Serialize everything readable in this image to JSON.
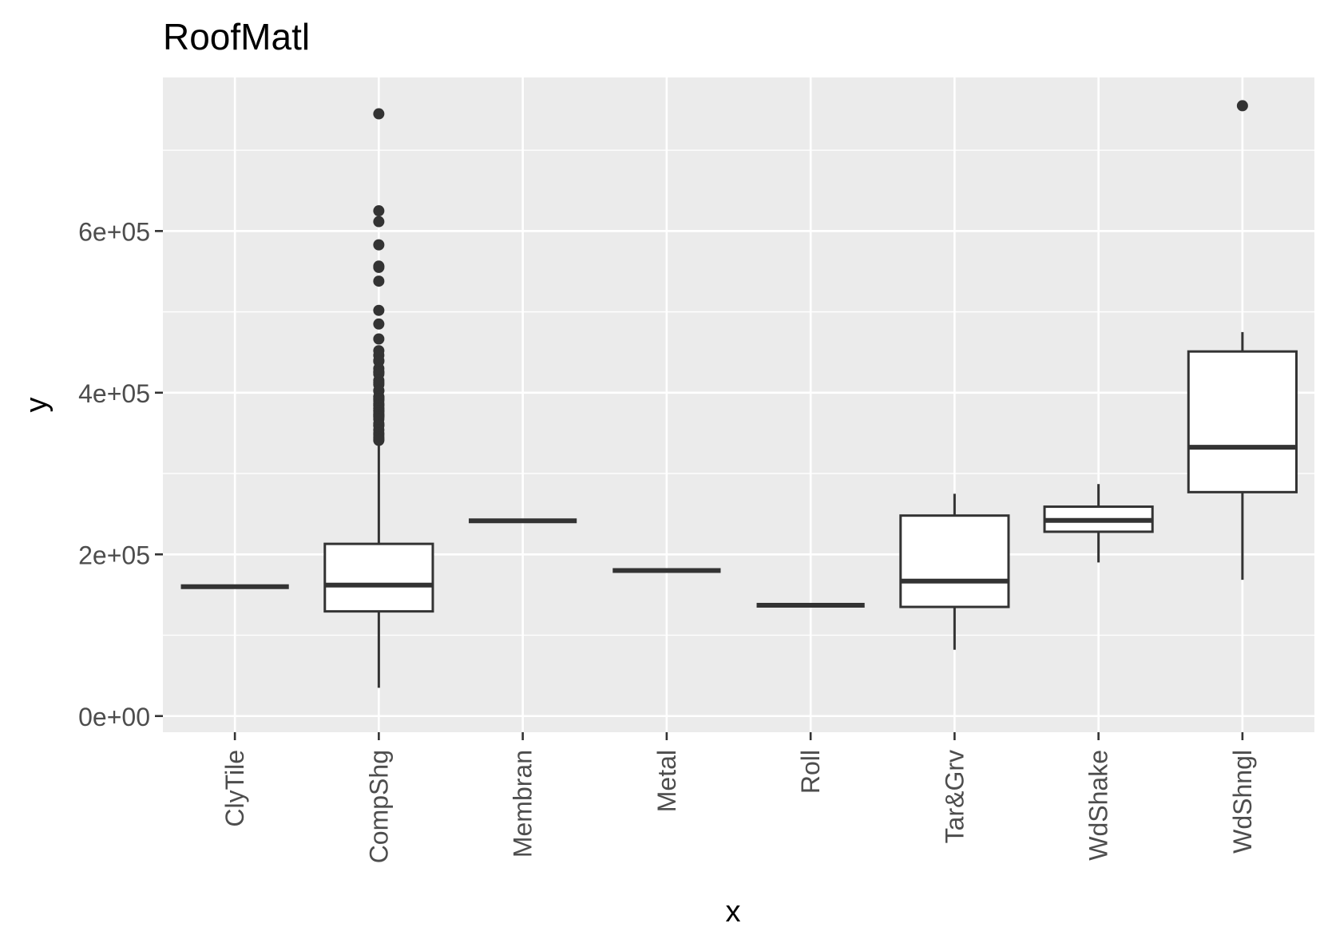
{
  "chart_data": {
    "type": "boxplot",
    "title": "RoofMatl",
    "xlabel": "x",
    "ylabel": "y",
    "ylim": [
      -20000,
      790000
    ],
    "y_ticks": [
      {
        "value": 0,
        "label": "0e+00"
      },
      {
        "value": 200000,
        "label": "2e+05"
      },
      {
        "value": 400000,
        "label": "4e+05"
      },
      {
        "value": 600000,
        "label": "6e+05"
      }
    ],
    "y_minor_ticks": [
      100000,
      300000,
      500000,
      700000
    ],
    "grid": true,
    "legend": "none",
    "colors": {
      "panel": "#ebebeb",
      "grid": "#ffffff",
      "box_fill": "#ffffff",
      "box_stroke": "#333333",
      "text": "#4d4d4d",
      "title": "#000000"
    },
    "categories": [
      "ClyTile",
      "CompShg",
      "Membran",
      "Metal",
      "Roll",
      "Tar&Grv",
      "WdShake",
      "WdShngl"
    ],
    "boxes": [
      {
        "category": "ClyTile",
        "min": 160000,
        "q1": 160000,
        "median": 160000,
        "q3": 160000,
        "max": 160000,
        "outliers": []
      },
      {
        "category": "CompShg",
        "min": 34900,
        "q1": 129500,
        "median": 162000,
        "q3": 213000,
        "max": 340000,
        "outliers": [
          745000,
          625000,
          611657,
          582933,
          556581,
          555000,
          538000,
          501837,
          485000,
          466500,
          451950,
          446261,
          440000,
          438780,
          430000,
          426000,
          424870,
          423000,
          415298,
          412500,
          410000,
          402861,
          402000,
          395192,
          394617,
          392500,
          392000,
          390000,
          386250,
          385000,
          383970,
          381000,
          380000,
          377500,
          377426,
          375000,
          372500,
          372402,
          370878,
          369900,
          367294,
          361919,
          360000,
          359100,
          354000,
          350000,
          348000,
          345000,
          342643,
          341000
        ]
      },
      {
        "category": "Membran",
        "min": 241500,
        "q1": 241500,
        "median": 241500,
        "q3": 241500,
        "max": 241500,
        "outliers": []
      },
      {
        "category": "Metal",
        "min": 180000,
        "q1": 180000,
        "median": 180000,
        "q3": 180000,
        "max": 180000,
        "outliers": []
      },
      {
        "category": "Roll",
        "min": 137000,
        "q1": 137000,
        "median": 137000,
        "q3": 137000,
        "max": 137000,
        "outliers": []
      },
      {
        "category": "Tar&Grv",
        "min": 82000,
        "q1": 135000,
        "median": 167000,
        "q3": 248000,
        "max": 274970,
        "outliers": []
      },
      {
        "category": "WdShake",
        "min": 190000,
        "q1": 228000,
        "median": 242000,
        "q3": 259000,
        "max": 287000,
        "outliers": []
      },
      {
        "category": "WdShngl",
        "min": 168500,
        "q1": 277000,
        "median": 332500,
        "q3": 451000,
        "max": 475000,
        "outliers": [
          755000
        ]
      }
    ]
  }
}
